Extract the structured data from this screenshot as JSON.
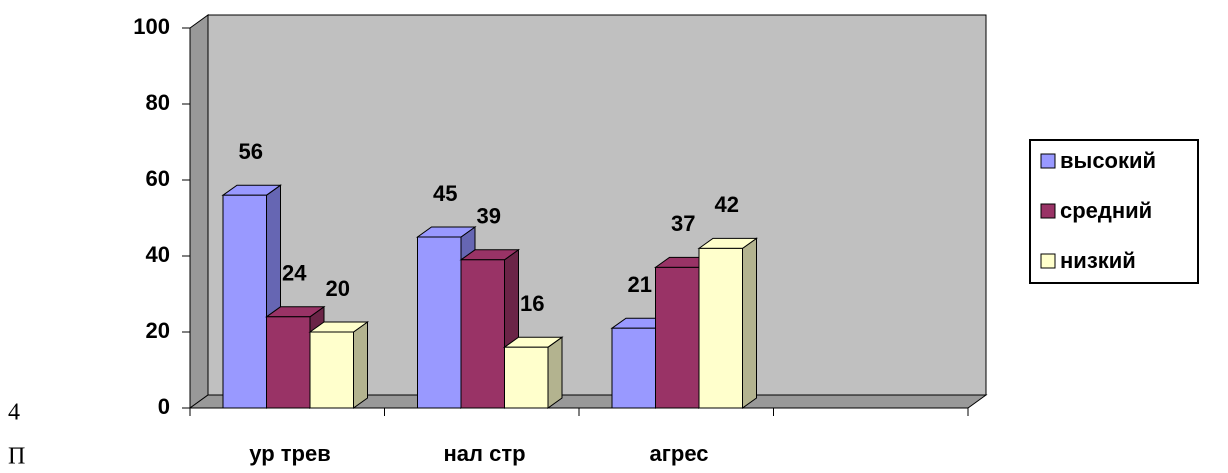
{
  "chart_data": {
    "type": "bar3d",
    "categories": [
      "ур трев",
      "нал стр",
      "агрес",
      null
    ],
    "series": [
      {
        "name": "высокий",
        "color": "#9999ff",
        "side": "#6666b3",
        "values": [
          56,
          45,
          21,
          null
        ]
      },
      {
        "name": "средний",
        "color": "#993366",
        "side": "#6b2447",
        "values": [
          24,
          39,
          37,
          null
        ]
      },
      {
        "name": "низкий",
        "color": "#ffffcc",
        "side": "#b3b38f",
        "values": [
          20,
          16,
          42,
          null
        ]
      }
    ],
    "ylim": [
      0,
      100
    ],
    "yticks": [
      0,
      20,
      40,
      60,
      80,
      100
    ],
    "grid": false,
    "legend": "right",
    "wall_color": "#c0c0c0"
  },
  "margin_text": [
    "4",
    "П"
  ]
}
